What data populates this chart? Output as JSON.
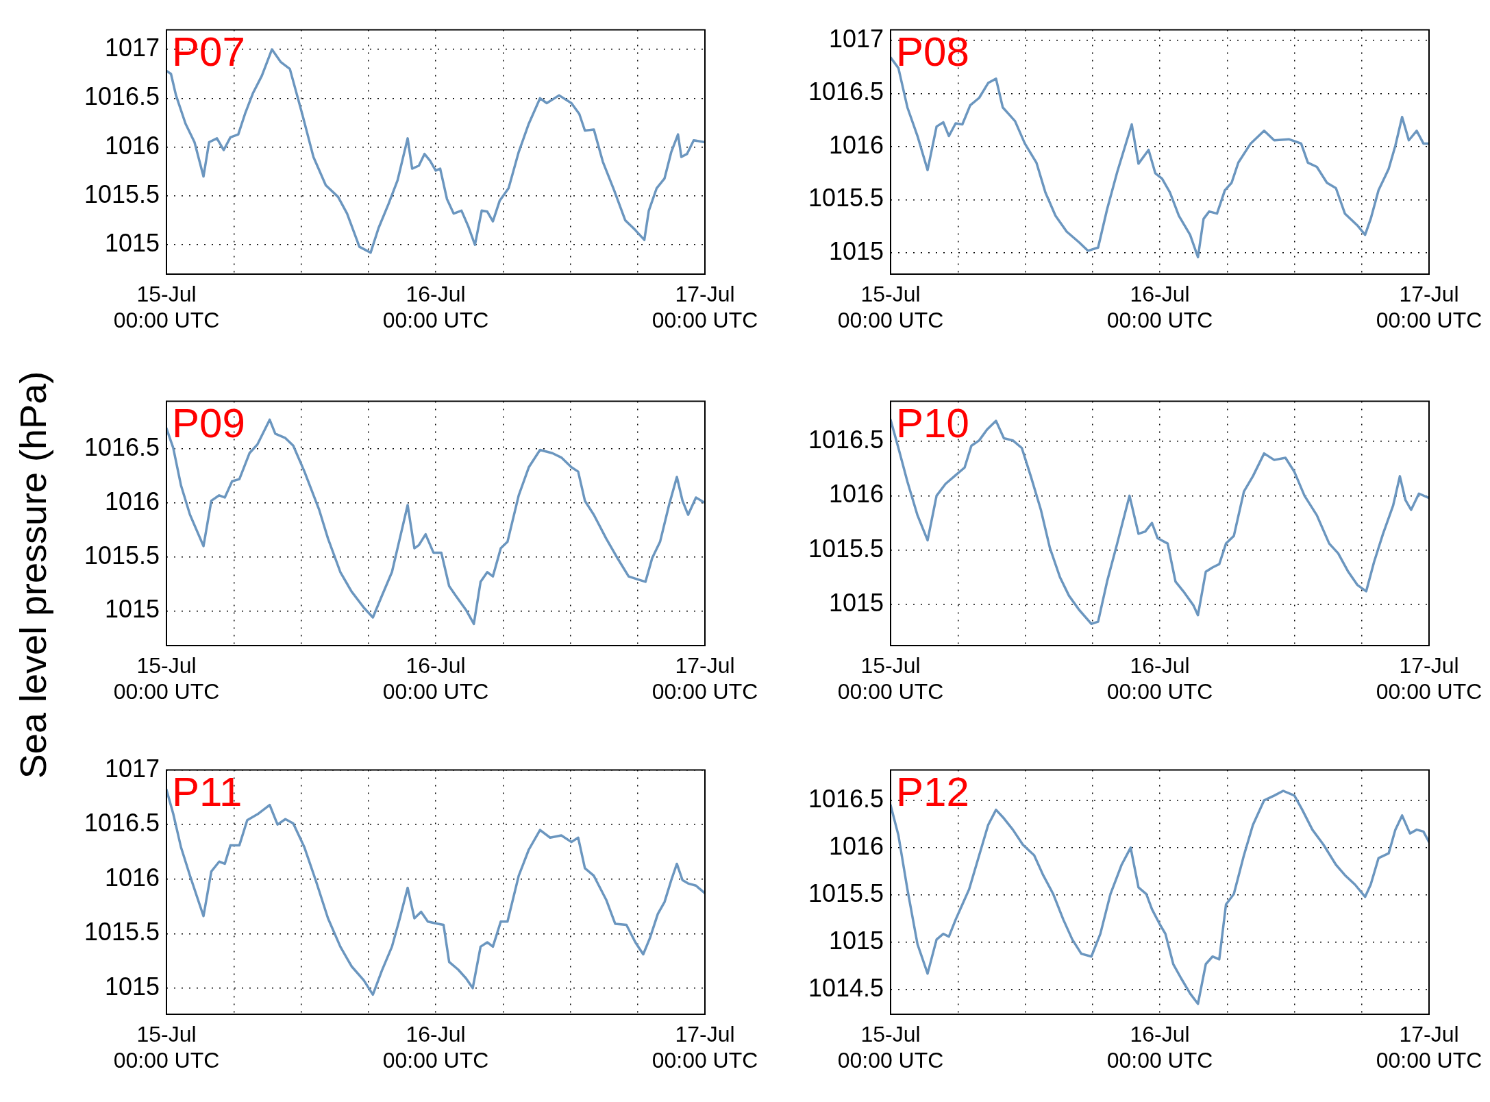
{
  "chart_data": [
    {
      "type": "line",
      "annotations": [
        "P07"
      ],
      "xlim": [
        "--07-15T00:00",
        "--07-17T00:00"
      ],
      "ylim": [
        1014.7,
        1017.2
      ],
      "grid": true,
      "marker": "none",
      "line_style": "solid",
      "xticks": [
        {
          "value": "--07-15T00:00",
          "label": "15-Jul\n00:00 UTC"
        },
        {
          "value": "--07-15T06:00",
          "label": null
        },
        {
          "value": "--07-15T12:00",
          "label": null
        },
        {
          "value": "--07-15T18:00",
          "label": null
        },
        {
          "value": "--07-16T00:00",
          "label": "16-Jul\n00:00 UTC"
        },
        {
          "value": "--07-16T06:00",
          "label": null
        },
        {
          "value": "--07-16T12:00",
          "label": null
        },
        {
          "value": "--07-16T18:00",
          "label": null
        },
        {
          "value": "--07-17T00:00",
          "label": "17-Jul\n00:00 UTC"
        }
      ],
      "yticks": [
        1015,
        1015.5,
        1016,
        1016.5,
        1017
      ],
      "x": [
        "--07-15T00:00",
        "--07-15T00:24",
        "--07-15T00:51",
        "--07-15T01:42",
        "--07-15T02:30",
        "--07-15T03:18",
        "--07-15T03:48",
        "--07-15T04:30",
        "--07-15T05:06",
        "--07-15T05:42",
        "--07-15T06:24",
        "--07-15T07:00",
        "--07-15T07:42",
        "--07-15T08:30",
        "--07-15T09:24",
        "--07-15T10:12",
        "--07-15T11:00",
        "--07-15T12:06",
        "--07-15T13:06",
        "--07-15T14:12",
        "--07-15T15:18",
        "--07-15T16:06",
        "--07-15T17:12",
        "--07-15T18:12",
        "--07-15T18:54",
        "--07-15T19:48",
        "--07-15T20:36",
        "--07-15T21:30",
        "--07-15T21:54",
        "--07-15T22:30",
        "--07-15T23:00",
        "--07-15T23:30",
        "--07-16T00:00",
        "--07-16T00:24",
        "--07-16T01:00",
        "--07-16T01:36",
        "--07-16T02:18",
        "--07-16T02:54",
        "--07-16T03:30",
        "--07-16T04:06",
        "--07-16T04:36",
        "--07-16T05:06",
        "--07-16T05:42",
        "--07-16T06:30",
        "--07-16T07:24",
        "--07-16T08:18",
        "--07-16T09:18",
        "--07-16T09:54",
        "--07-16T11:00",
        "--07-16T12:06",
        "--07-16T12:48",
        "--07-16T13:18",
        "--07-16T14:06",
        "--07-16T14:54",
        "--07-16T15:54",
        "--07-16T16:54",
        "--07-16T17:48",
        "--07-16T18:36",
        "--07-16T19:00",
        "--07-16T19:42",
        "--07-16T20:24",
        "--07-16T21:00",
        "--07-16T21:36",
        "--07-16T21:54",
        "--07-16T22:24",
        "--07-16T23:00",
        "--07-17T00:00"
      ],
      "series": [
        {
          "color": "#6b96bf",
          "values": [
            1016.78,
            1016.75,
            1016.53,
            1016.24,
            1016.05,
            1015.7,
            1016.05,
            1016.09,
            1015.97,
            1016.1,
            1016.13,
            1016.34,
            1016.55,
            1016.73,
            1017.0,
            1016.87,
            1016.8,
            1016.34,
            1015.9,
            1015.61,
            1015.49,
            1015.32,
            1014.98,
            1014.92,
            1015.17,
            1015.42,
            1015.66,
            1016.09,
            1015.78,
            1015.81,
            1015.93,
            1015.86,
            1015.76,
            1015.78,
            1015.47,
            1015.32,
            1015.35,
            1015.19,
            1015.0,
            1015.35,
            1015.34,
            1015.24,
            1015.45,
            1015.58,
            1015.95,
            1016.24,
            1016.5,
            1016.45,
            1016.53,
            1016.45,
            1016.34,
            1016.17,
            1016.18,
            1015.85,
            1015.56,
            1015.25,
            1015.15,
            1015.05,
            1015.35,
            1015.58,
            1015.68,
            1015.95,
            1016.13,
            1015.9,
            1015.93,
            1016.07,
            1016.05
          ]
        }
      ]
    },
    {
      "type": "line",
      "annotations": [
        "P08"
      ],
      "xlim": [
        "--07-15T00:00",
        "--07-17T00:00"
      ],
      "ylim": [
        1014.8,
        1017.1
      ],
      "grid": true,
      "marker": "none",
      "line_style": "solid",
      "xticks": [
        {
          "value": "--07-15T00:00",
          "label": "15-Jul\n00:00 UTC"
        },
        {
          "value": "--07-15T06:00",
          "label": null
        },
        {
          "value": "--07-15T12:00",
          "label": null
        },
        {
          "value": "--07-15T18:00",
          "label": null
        },
        {
          "value": "--07-16T00:00",
          "label": "16-Jul\n00:00 UTC"
        },
        {
          "value": "--07-16T06:00",
          "label": null
        },
        {
          "value": "--07-16T12:00",
          "label": null
        },
        {
          "value": "--07-16T18:00",
          "label": null
        },
        {
          "value": "--07-17T00:00",
          "label": "17-Jul\n00:00 UTC"
        }
      ],
      "yticks": [
        1015,
        1015.5,
        1016,
        1016.5,
        1017
      ],
      "x": [
        "--07-15T00:00",
        "--07-15T00:42",
        "--07-15T01:30",
        "--07-15T02:24",
        "--07-15T03:18",
        "--07-15T04:06",
        "--07-15T04:42",
        "--07-15T05:12",
        "--07-15T05:48",
        "--07-15T06:24",
        "--07-15T07:06",
        "--07-15T07:54",
        "--07-15T08:42",
        "--07-15T09:24",
        "--07-15T10:00",
        "--07-15T10:36",
        "--07-15T11:06",
        "--07-15T11:58",
        "--07-15T13:00",
        "--07-15T13:48",
        "--07-15T14:42",
        "--07-15T15:42",
        "--07-15T16:48",
        "--07-15T17:36",
        "--07-15T18:30",
        "--07-15T19:18",
        "--07-15T20:12",
        "--07-15T21:30",
        "--07-15T22:06",
        "--07-15T23:00",
        "--07-15T23:36",
        "--07-16T00:12",
        "--07-16T00:54",
        "--07-16T01:42",
        "--07-16T02:42",
        "--07-16T03:24",
        "--07-16T03:54",
        "--07-16T04:24",
        "--07-16T05:06",
        "--07-16T05:48",
        "--07-16T06:24",
        "--07-16T07:00",
        "--07-16T08:06",
        "--07-16T09:18",
        "--07-16T10:12",
        "--07-16T11:30",
        "--07-16T12:36",
        "--07-16T13:12",
        "--07-16T14:00",
        "--07-16T14:54",
        "--07-16T15:42",
        "--07-16T16:30",
        "--07-16T17:36",
        "--07-16T18:18",
        "--07-16T18:48",
        "--07-16T19:30",
        "--07-16T20:24",
        "--07-16T21:00",
        "--07-16T21:36",
        "--07-16T22:12",
        "--07-16T22:54",
        "--07-16T23:30",
        "--07-17T00:00"
      ],
      "series": [
        {
          "color": "#6b96bf",
          "values": [
            1016.84,
            1016.74,
            1016.37,
            1016.1,
            1015.78,
            1016.19,
            1016.23,
            1016.1,
            1016.22,
            1016.21,
            1016.39,
            1016.46,
            1016.6,
            1016.64,
            1016.37,
            1016.3,
            1016.24,
            1016.03,
            1015.85,
            1015.57,
            1015.35,
            1015.2,
            1015.1,
            1015.02,
            1015.05,
            1015.41,
            1015.76,
            1016.21,
            1015.84,
            1015.97,
            1015.75,
            1015.7,
            1015.57,
            1015.35,
            1015.17,
            1014.96,
            1015.32,
            1015.39,
            1015.37,
            1015.59,
            1015.66,
            1015.85,
            1016.03,
            1016.15,
            1016.06,
            1016.07,
            1016.03,
            1015.85,
            1015.81,
            1015.66,
            1015.61,
            1015.37,
            1015.26,
            1015.17,
            1015.32,
            1015.59,
            1015.79,
            1016.01,
            1016.28,
            1016.06,
            1016.15,
            1016.03,
            1016.03
          ]
        }
      ]
    },
    {
      "type": "line",
      "annotations": [
        "P09"
      ],
      "ylabel": "Sea level pressure (hPa)",
      "xlim": [
        "--07-15T00:00",
        "--07-17T00:00"
      ],
      "ylim": [
        1014.68,
        1016.94
      ],
      "grid": true,
      "marker": "none",
      "line_style": "solid",
      "xticks": [
        {
          "value": "--07-15T00:00",
          "label": "15-Jul\n00:00 UTC"
        },
        {
          "value": "--07-15T06:00",
          "label": null
        },
        {
          "value": "--07-15T12:00",
          "label": null
        },
        {
          "value": "--07-15T18:00",
          "label": null
        },
        {
          "value": "--07-16T00:00",
          "label": "16-Jul\n00:00 UTC"
        },
        {
          "value": "--07-16T06:00",
          "label": null
        },
        {
          "value": "--07-16T12:00",
          "label": null
        },
        {
          "value": "--07-16T18:00",
          "label": null
        },
        {
          "value": "--07-17T00:00",
          "label": "17-Jul\n00:00 UTC"
        }
      ],
      "yticks": [
        1015,
        1015.5,
        1016,
        1016.5
      ],
      "x": [
        "--07-15T00:00",
        "--07-15T00:36",
        "--07-15T01:18",
        "--07-15T02:06",
        "--07-15T03:18",
        "--07-15T04:00",
        "--07-15T04:42",
        "--07-15T05:12",
        "--07-15T05:51",
        "--07-15T06:30",
        "--07-15T07:24",
        "--07-15T08:06",
        "--07-15T09:12",
        "--07-15T09:42",
        "--07-15T10:36",
        "--07-15T11:18",
        "--07-15T12:18",
        "--07-15T13:36",
        "--07-15T14:24",
        "--07-15T15:30",
        "--07-15T16:30",
        "--07-15T17:36",
        "--07-15T18:24",
        "--07-15T19:12",
        "--07-15T20:06",
        "--07-15T20:48",
        "--07-15T21:30",
        "--07-15T22:06",
        "--07-15T22:30",
        "--07-15T23:06",
        "--07-15T23:48",
        "--07-16T00:30",
        "--07-16T01:12",
        "--07-16T01:48",
        "--07-16T02:42",
        "--07-16T03:24",
        "--07-16T04:00",
        "--07-16T04:36",
        "--07-16T05:06",
        "--07-16T05:48",
        "--07-16T06:24",
        "--07-16T07:24",
        "--07-16T08:18",
        "--07-16T09:18",
        "--07-16T10:24",
        "--07-16T11:12",
        "--07-16T12:06",
        "--07-16T12:42",
        "--07-16T13:18",
        "--07-16T14:06",
        "--07-16T15:12",
        "--07-16T16:12",
        "--07-16T17:12",
        "--07-16T18:06",
        "--07-16T18:42",
        "--07-16T19:18",
        "--07-16T20:00",
        "--07-16T20:48",
        "--07-16T21:30",
        "--07-16T22:00",
        "--07-16T22:30",
        "--07-16T23:12",
        "--07-17T00:00"
      ],
      "series": [
        {
          "color": "#6b96bf",
          "values": [
            1016.69,
            1016.51,
            1016.16,
            1015.89,
            1015.6,
            1016.02,
            1016.07,
            1016.05,
            1016.2,
            1016.22,
            1016.46,
            1016.54,
            1016.77,
            1016.64,
            1016.6,
            1016.53,
            1016.29,
            1015.94,
            1015.67,
            1015.36,
            1015.18,
            1015.03,
            1014.94,
            1015.14,
            1015.36,
            1015.67,
            1015.98,
            1015.58,
            1015.61,
            1015.71,
            1015.54,
            1015.54,
            1015.23,
            1015.14,
            1015.01,
            1014.88,
            1015.27,
            1015.36,
            1015.32,
            1015.58,
            1015.64,
            1016.07,
            1016.33,
            1016.49,
            1016.46,
            1016.42,
            1016.33,
            1016.29,
            1016.02,
            1015.89,
            1015.67,
            1015.49,
            1015.32,
            1015.29,
            1015.27,
            1015.49,
            1015.64,
            1015.98,
            1016.24,
            1016.02,
            1015.89,
            1016.05,
            1016.0
          ]
        }
      ]
    },
    {
      "type": "line",
      "annotations": [
        "P10"
      ],
      "xlim": [
        "--07-15T00:00",
        "--07-17T00:00"
      ],
      "ylim": [
        1014.62,
        1016.87
      ],
      "grid": true,
      "marker": "none",
      "line_style": "solid",
      "xticks": [
        {
          "value": "--07-15T00:00",
          "label": "15-Jul\n00:00 UTC"
        },
        {
          "value": "--07-15T06:00",
          "label": null
        },
        {
          "value": "--07-15T12:00",
          "label": null
        },
        {
          "value": "--07-15T18:00",
          "label": null
        },
        {
          "value": "--07-16T00:00",
          "label": "16-Jul\n00:00 UTC"
        },
        {
          "value": "--07-16T06:00",
          "label": null
        },
        {
          "value": "--07-16T12:00",
          "label": null
        },
        {
          "value": "--07-16T18:00",
          "label": null
        },
        {
          "value": "--07-17T00:00",
          "label": "17-Jul\n00:00 UTC"
        }
      ],
      "yticks": [
        1015,
        1015.5,
        1016,
        1016.5
      ],
      "x": [
        "--07-15T00:00",
        "--07-15T00:42",
        "--07-15T01:30",
        "--07-15T02:24",
        "--07-15T03:18",
        "--07-15T04:06",
        "--07-15T04:54",
        "--07-15T05:48",
        "--07-15T06:36",
        "--07-15T07:12",
        "--07-15T07:54",
        "--07-15T08:36",
        "--07-15T09:24",
        "--07-15T10:06",
        "--07-15T10:54",
        "--07-15T11:42",
        "--07-15T12:30",
        "--07-15T13:24",
        "--07-15T14:12",
        "--07-15T15:06",
        "--07-15T15:54",
        "--07-15T16:48",
        "--07-15T17:54",
        "--07-15T18:30",
        "--07-15T19:18",
        "--07-15T20:12",
        "--07-15T21:18",
        "--07-15T22:06",
        "--07-15T22:42",
        "--07-15T23:18",
        "--07-15T23:48",
        "--07-16T00:42",
        "--07-16T01:24",
        "--07-16T02:06",
        "--07-16T03:00",
        "--07-16T03:24",
        "--07-16T04:06",
        "--07-16T04:42",
        "--07-16T05:18",
        "--07-16T05:54",
        "--07-16T06:36",
        "--07-16T07:30",
        "--07-16T08:18",
        "--07-16T09:18",
        "--07-16T10:12",
        "--07-16T11:12",
        "--07-16T12:00",
        "--07-16T12:54",
        "--07-16T14:00",
        "--07-16T15:06",
        "--07-16T15:54",
        "--07-16T16:48",
        "--07-16T17:36",
        "--07-16T18:24",
        "--07-16T19:06",
        "--07-16T19:54",
        "--07-16T20:48",
        "--07-16T21:24",
        "--07-16T21:54",
        "--07-16T22:24",
        "--07-16T23:06",
        "--07-17T00:00"
      ],
      "series": [
        {
          "color": "#6b96bf",
          "values": [
            1016.7,
            1016.44,
            1016.13,
            1015.82,
            1015.59,
            1016.0,
            1016.11,
            1016.19,
            1016.26,
            1016.46,
            1016.51,
            1016.61,
            1016.69,
            1016.53,
            1016.51,
            1016.44,
            1016.18,
            1015.87,
            1015.52,
            1015.25,
            1015.08,
            1014.95,
            1014.82,
            1014.84,
            1015.21,
            1015.56,
            1016.0,
            1015.65,
            1015.67,
            1015.75,
            1015.61,
            1015.56,
            1015.21,
            1015.12,
            1014.99,
            1014.9,
            1015.3,
            1015.34,
            1015.37,
            1015.56,
            1015.63,
            1016.04,
            1016.18,
            1016.39,
            1016.33,
            1016.35,
            1016.22,
            1016.0,
            1015.82,
            1015.56,
            1015.47,
            1015.3,
            1015.18,
            1015.12,
            1015.39,
            1015.65,
            1015.91,
            1016.18,
            1015.96,
            1015.87,
            1016.02,
            1015.98
          ]
        }
      ]
    },
    {
      "type": "line",
      "annotations": [
        "P11"
      ],
      "xlim": [
        "--07-15T00:00",
        "--07-17T00:00"
      ],
      "ylim": [
        1014.76,
        1017
      ],
      "grid": true,
      "marker": "none",
      "line_style": "solid",
      "xticks": [
        {
          "value": "--07-15T00:00",
          "label": "15-Jul\n00:00 UTC"
        },
        {
          "value": "--07-15T06:00",
          "label": null
        },
        {
          "value": "--07-15T12:00",
          "label": null
        },
        {
          "value": "--07-15T18:00",
          "label": null
        },
        {
          "value": "--07-16T00:00",
          "label": "16-Jul\n00:00 UTC"
        },
        {
          "value": "--07-16T06:00",
          "label": null
        },
        {
          "value": "--07-16T12:00",
          "label": null
        },
        {
          "value": "--07-16T18:00",
          "label": null
        },
        {
          "value": "--07-17T00:00",
          "label": "17-Jul\n00:00 UTC"
        }
      ],
      "yticks": [
        1015,
        1015.5,
        1016,
        1016.5,
        1017
      ],
      "x": [
        "--07-15T00:00",
        "--07-15T00:36",
        "--07-15T01:18",
        "--07-15T02:06",
        "--07-15T03:18",
        "--07-15T04:00",
        "--07-15T04:42",
        "--07-15T05:12",
        "--07-15T05:42",
        "--07-15T06:30",
        "--07-15T07:12",
        "--07-15T08:12",
        "--07-15T09:12",
        "--07-15T09:54",
        "--07-15T10:36",
        "--07-15T11:18",
        "--07-15T12:18",
        "--07-15T13:18",
        "--07-15T14:24",
        "--07-15T15:30",
        "--07-15T16:30",
        "--07-15T17:36",
        "--07-15T18:24",
        "--07-15T19:12",
        "--07-15T20:06",
        "--07-15T20:48",
        "--07-15T21:30",
        "--07-15T22:06",
        "--07-15T22:42",
        "--07-15T23:18",
        "--07-16T00:12",
        "--07-16T00:42",
        "--07-16T01:12",
        "--07-16T02:00",
        "--07-16T02:42",
        "--07-16T03:18",
        "--07-16T04:00",
        "--07-16T04:36",
        "--07-16T05:06",
        "--07-16T05:48",
        "--07-16T06:24",
        "--07-16T07:24",
        "--07-16T08:18",
        "--07-16T09:18",
        "--07-16T10:12",
        "--07-16T11:12",
        "--07-16T12:06",
        "--07-16T12:42",
        "--07-16T13:18",
        "--07-16T14:06",
        "--07-16T15:12",
        "--07-16T16:00",
        "--07-16T17:00",
        "--07-16T17:48",
        "--07-16T18:30",
        "--07-16T19:06",
        "--07-16T19:48",
        "--07-16T20:24",
        "--07-16T21:00",
        "--07-16T21:30",
        "--07-16T22:00",
        "--07-16T22:30",
        "--07-16T23:12",
        "--07-17T00:00"
      ],
      "series": [
        {
          "color": "#6b96bf",
          "values": [
            1016.82,
            1016.6,
            1016.29,
            1016.03,
            1015.66,
            1016.07,
            1016.16,
            1016.14,
            1016.31,
            1016.31,
            1016.54,
            1016.6,
            1016.68,
            1016.5,
            1016.55,
            1016.51,
            1016.29,
            1015.99,
            1015.64,
            1015.38,
            1015.2,
            1015.07,
            1014.94,
            1015.16,
            1015.38,
            1015.64,
            1015.92,
            1015.64,
            1015.7,
            1015.61,
            1015.59,
            1015.58,
            1015.24,
            1015.17,
            1015.09,
            1015.0,
            1015.38,
            1015.42,
            1015.38,
            1015.61,
            1015.61,
            1016.03,
            1016.27,
            1016.45,
            1016.38,
            1016.4,
            1016.34,
            1016.38,
            1016.1,
            1016.03,
            1015.81,
            1015.59,
            1015.58,
            1015.42,
            1015.31,
            1015.46,
            1015.68,
            1015.79,
            1015.99,
            1016.14,
            1015.99,
            1015.96,
            1015.94,
            1015.87
          ]
        }
      ]
    },
    {
      "type": "line",
      "annotations": [
        "P12"
      ],
      "xlim": [
        "--07-15T00:00",
        "--07-17T00:00"
      ],
      "ylim": [
        1014.24,
        1016.82
      ],
      "grid": true,
      "marker": "none",
      "line_style": "solid",
      "xticks": [
        {
          "value": "--07-15T00:00",
          "label": "15-Jul\n00:00 UTC"
        },
        {
          "value": "--07-15T06:00",
          "label": null
        },
        {
          "value": "--07-15T12:00",
          "label": null
        },
        {
          "value": "--07-15T18:00",
          "label": null
        },
        {
          "value": "--07-16T00:00",
          "label": "16-Jul\n00:00 UTC"
        },
        {
          "value": "--07-16T06:00",
          "label": null
        },
        {
          "value": "--07-16T12:00",
          "label": null
        },
        {
          "value": "--07-16T18:00",
          "label": null
        },
        {
          "value": "--07-17T00:00",
          "label": "17-Jul\n00:00 UTC"
        }
      ],
      "yticks": [
        1014.5,
        1015,
        1015.5,
        1016,
        1016.5
      ],
      "x": [
        "--07-15T00:00",
        "--07-15T00:42",
        "--07-15T01:30",
        "--07-15T02:24",
        "--07-15T03:18",
        "--07-15T04:06",
        "--07-15T04:42",
        "--07-15T05:12",
        "--07-15T05:48",
        "--07-15T06:24",
        "--07-15T07:00",
        "--07-15T07:54",
        "--07-15T08:42",
        "--07-15T09:24",
        "--07-15T10:06",
        "--07-15T10:54",
        "--07-15T11:48",
        "--07-15T12:48",
        "--07-15T13:36",
        "--07-15T14:30",
        "--07-15T15:24",
        "--07-15T16:12",
        "--07-15T17:00",
        "--07-15T17:54",
        "--07-15T18:42",
        "--07-15T19:36",
        "--07-15T20:36",
        "--07-15T21:24",
        "--07-15T22:06",
        "--07-15T22:48",
        "--07-15T23:18",
        "--07-16T00:00",
        "--07-16T00:30",
        "--07-16T01:12",
        "--07-16T01:54",
        "--07-16T02:42",
        "--07-16T03:24",
        "--07-16T04:06",
        "--07-16T04:42",
        "--07-16T05:18",
        "--07-16T05:54",
        "--07-16T06:36",
        "--07-16T07:30",
        "--07-16T08:18",
        "--07-16T09:18",
        "--07-16T10:12",
        "--07-16T11:00",
        "--07-16T12:00",
        "--07-16T12:42",
        "--07-16T13:36",
        "--07-16T14:36",
        "--07-16T15:42",
        "--07-16T16:30",
        "--07-16T17:24",
        "--07-16T18:18",
        "--07-16T18:48",
        "--07-16T19:30",
        "--07-16T20:24",
        "--07-16T21:00",
        "--07-16T21:36",
        "--07-16T22:18",
        "--07-16T22:54",
        "--07-16T23:30",
        "--07-17T00:00"
      ],
      "series": [
        {
          "color": "#6b96bf",
          "values": [
            1016.45,
            1016.13,
            1015.56,
            1014.98,
            1014.67,
            1015.03,
            1015.09,
            1015.06,
            1015.24,
            1015.4,
            1015.56,
            1015.92,
            1016.24,
            1016.4,
            1016.31,
            1016.19,
            1016.03,
            1015.92,
            1015.71,
            1015.51,
            1015.24,
            1015.03,
            1014.88,
            1014.85,
            1015.09,
            1015.51,
            1015.82,
            1016.0,
            1015.58,
            1015.51,
            1015.35,
            1015.19,
            1015.09,
            1014.77,
            1014.62,
            1014.46,
            1014.35,
            1014.77,
            1014.85,
            1014.82,
            1015.4,
            1015.51,
            1015.92,
            1016.24,
            1016.5,
            1016.55,
            1016.6,
            1016.55,
            1016.4,
            1016.19,
            1016.03,
            1015.82,
            1015.71,
            1015.61,
            1015.48,
            1015.61,
            1015.89,
            1015.94,
            1016.19,
            1016.34,
            1016.15,
            1016.19,
            1016.17,
            1016.06
          ]
        }
      ]
    }
  ]
}
